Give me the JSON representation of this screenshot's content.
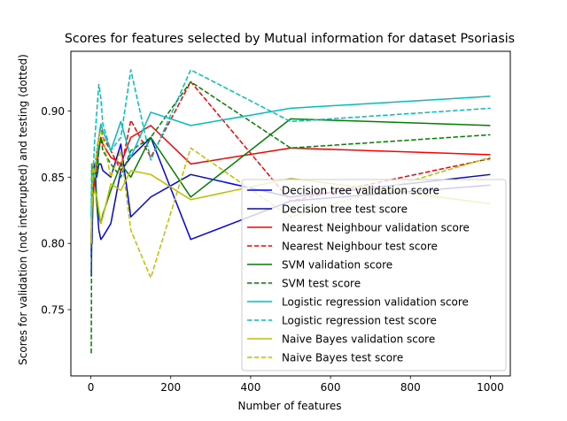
{
  "chart_data": {
    "type": "line",
    "title": "Scores for features selected by Mutual information for dataset Psoriasis",
    "xlabel": "Number of features",
    "ylabel": "Scores for validation (not interrupted) and testing (dotted)",
    "xlim": [
      -50,
      1050
    ],
    "ylim": [
      0.7,
      0.945
    ],
    "xticks": [
      0,
      200,
      400,
      600,
      800,
      1000
    ],
    "yticks": [
      0.75,
      0.8,
      0.85,
      0.9
    ],
    "ytick_labels": [
      "0.75",
      "0.80",
      "0.85",
      "0.90"
    ],
    "grid": false,
    "legend_position": "lower right",
    "x": [
      1,
      2,
      3,
      5,
      10,
      15,
      20,
      25,
      30,
      50,
      75,
      100,
      150,
      250,
      500,
      1000
    ],
    "series": [
      {
        "name": "Decision tree validation score",
        "color": "#0000ff",
        "dashed": false,
        "values": [
          0.79,
          0.83,
          0.8,
          0.83,
          0.86,
          0.85,
          0.86,
          0.86,
          0.855,
          0.85,
          0.875,
          0.82,
          0.835,
          0.852,
          0.835,
          0.852
        ]
      },
      {
        "name": "Decision tree test score",
        "color": "#0000ff",
        "dashed": false,
        "values": [
          0.775,
          0.8,
          0.83,
          0.85,
          0.86,
          0.83,
          0.81,
          0.803,
          0.805,
          0.815,
          0.855,
          0.865,
          0.88,
          0.803,
          0.832,
          0.844
        ]
      },
      {
        "name": "Nearest Neighbour validation score",
        "color": "#ff0000",
        "dashed": false,
        "values": [
          0.8,
          0.82,
          0.825,
          0.835,
          0.85,
          0.86,
          0.87,
          0.88,
          0.875,
          0.865,
          0.86,
          0.88,
          0.889,
          0.86,
          0.872,
          0.867
        ]
      },
      {
        "name": "Nearest Neighbour test score",
        "color": "#ff0000",
        "dashed": true,
        "values": [
          0.8,
          0.82,
          0.835,
          0.85,
          0.855,
          0.87,
          0.88,
          0.89,
          0.88,
          0.87,
          0.855,
          0.893,
          0.865,
          0.922,
          0.832,
          0.864
        ]
      },
      {
        "name": "SVM validation score",
        "color": "#008000",
        "dashed": false,
        "values": [
          0.8,
          0.83,
          0.85,
          0.86,
          0.85,
          0.83,
          0.82,
          0.815,
          0.822,
          0.84,
          0.86,
          0.85,
          0.88,
          0.835,
          0.894,
          0.889
        ]
      },
      {
        "name": "SVM test score",
        "color": "#008000",
        "dashed": true,
        "values": [
          0.717,
          0.8,
          0.83,
          0.86,
          0.855,
          0.85,
          0.87,
          0.88,
          0.87,
          0.86,
          0.85,
          0.87,
          0.88,
          0.922,
          0.872,
          0.882
        ]
      },
      {
        "name": "Logistic regression validation score",
        "color": "#00bfbf",
        "dashed": false,
        "values": [
          0.82,
          0.84,
          0.85,
          0.845,
          0.855,
          0.865,
          0.88,
          0.89,
          0.885,
          0.87,
          0.892,
          0.865,
          0.899,
          0.889,
          0.902,
          0.911
        ]
      },
      {
        "name": "Logistic regression test score",
        "color": "#00bfbf",
        "dashed": true,
        "values": [
          0.82,
          0.86,
          0.84,
          0.85,
          0.88,
          0.9,
          0.92,
          0.91,
          0.89,
          0.87,
          0.88,
          0.931,
          0.863,
          0.931,
          0.892,
          0.902
        ]
      },
      {
        "name": "Naive Bayes validation score",
        "color": "#bfbf00",
        "dashed": false,
        "values": [
          0.8,
          0.815,
          0.83,
          0.835,
          0.84,
          0.835,
          0.825,
          0.815,
          0.82,
          0.845,
          0.84,
          0.855,
          0.852,
          0.833,
          0.849,
          0.83
        ]
      },
      {
        "name": "Naive Bayes test score",
        "color": "#bfbf00",
        "dashed": true,
        "values": [
          0.8,
          0.81,
          0.83,
          0.86,
          0.85,
          0.87,
          0.88,
          0.885,
          0.88,
          0.85,
          0.87,
          0.81,
          0.774,
          0.872,
          0.82,
          0.865
        ]
      }
    ]
  }
}
